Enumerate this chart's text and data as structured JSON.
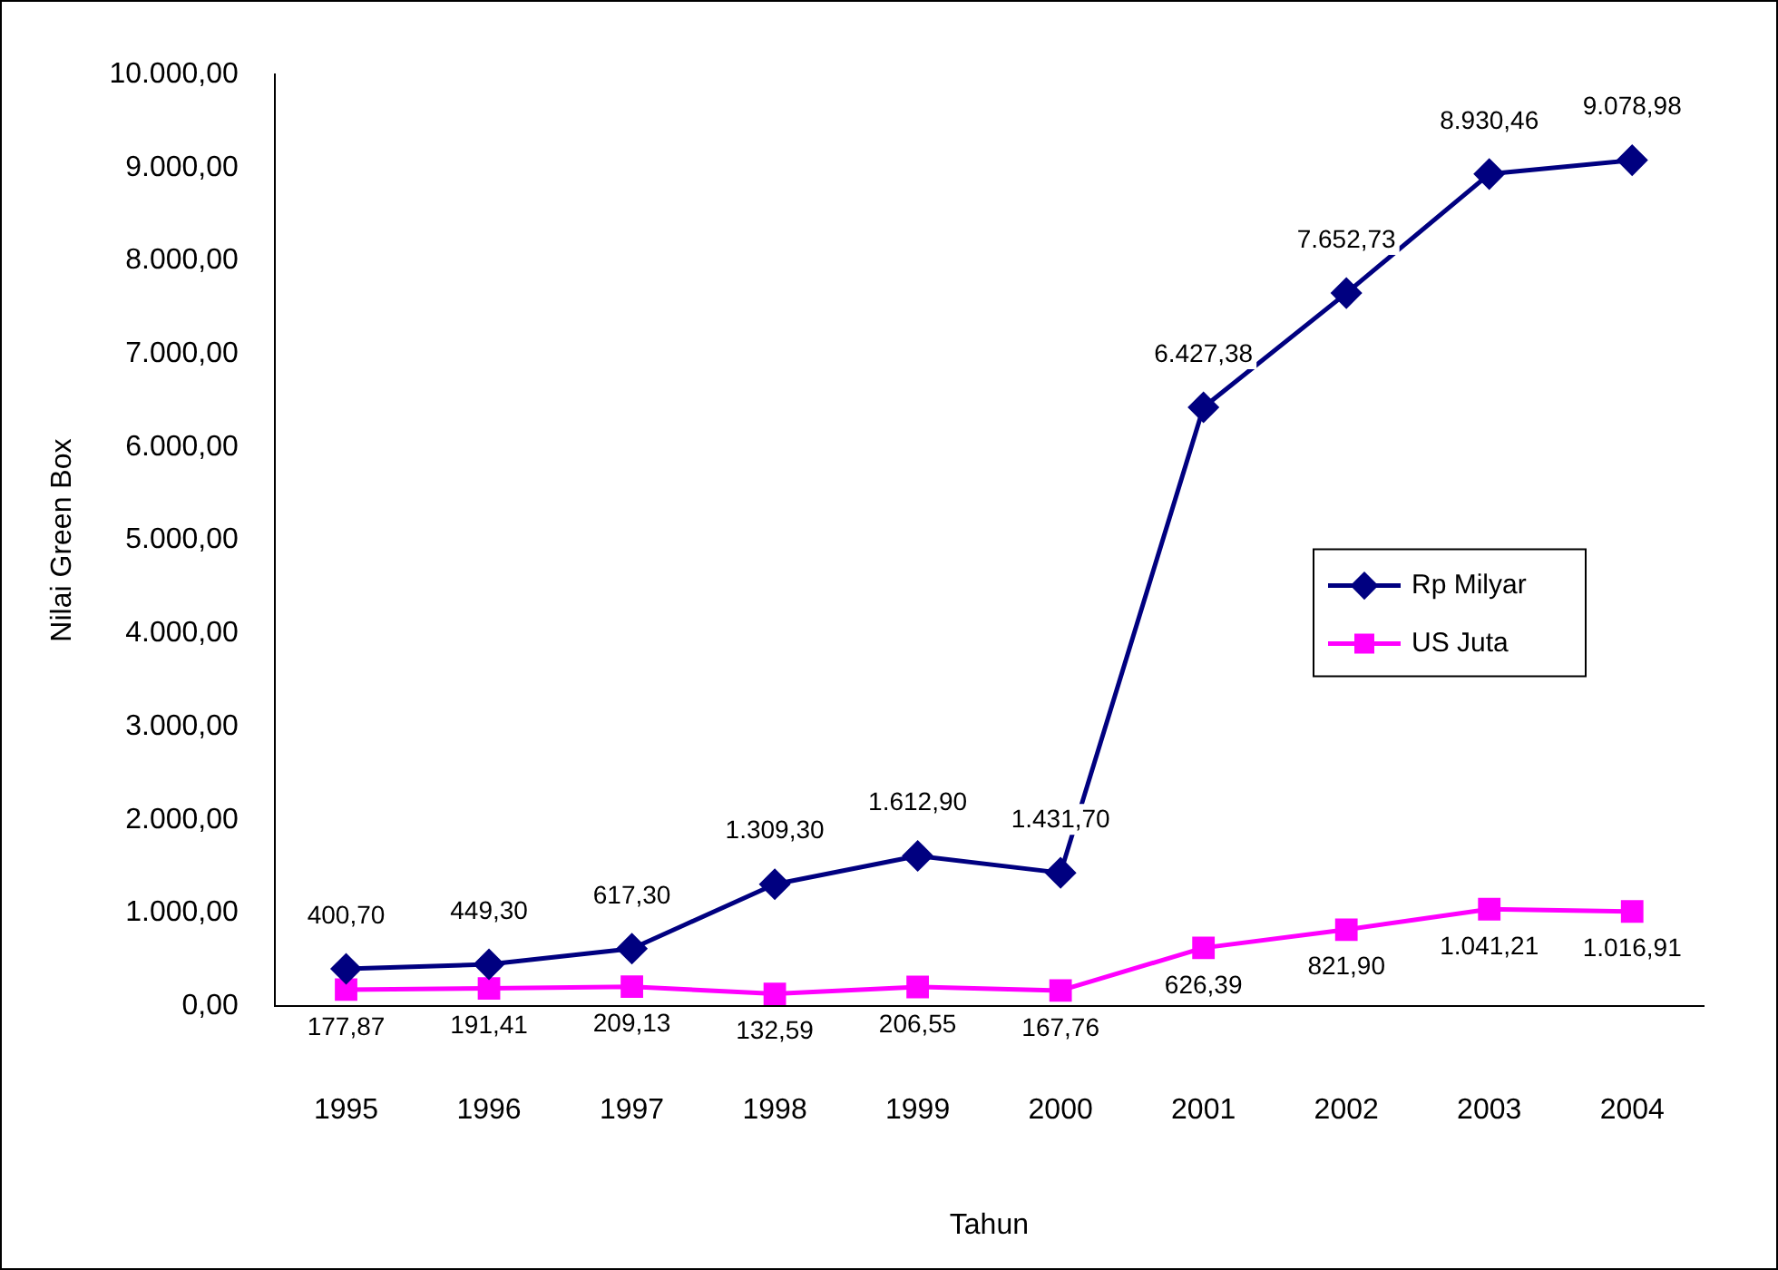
{
  "chart_data": {
    "type": "line",
    "xlabel": "Tahun",
    "ylabel": "Nilai Green Box",
    "categories": [
      "1995",
      "1996",
      "1997",
      "1998",
      "1999",
      "2000",
      "2001",
      "2002",
      "2003",
      "2004"
    ],
    "series": [
      {
        "name": "Rp Milyar",
        "color": "#000080",
        "marker": "diamond",
        "values": [
          400.7,
          449.3,
          617.3,
          1309.3,
          1612.9,
          1431.7,
          6427.38,
          7652.73,
          8930.46,
          9078.98
        ],
        "value_labels": [
          "400,70",
          "449,30",
          "617,30",
          "1.309,30",
          "1.612,90",
          "1.431,70",
          "6.427,38",
          "7.652,73",
          "8.930,46",
          "9.078,98"
        ]
      },
      {
        "name": "US Juta",
        "color": "#ff00ff",
        "marker": "square",
        "values": [
          177.87,
          191.41,
          209.13,
          132.59,
          206.55,
          167.76,
          626.39,
          821.9,
          1041.21,
          1016.91
        ],
        "value_labels": [
          "177,87",
          "191,41",
          "209,13",
          "132,59",
          "206,55",
          "167,76",
          "626,39",
          "821,90",
          "1.041,21",
          "1.016,91"
        ]
      }
    ],
    "ylim": [
      0,
      10000
    ],
    "yticks": [
      {
        "value": 0,
        "label": "0,00"
      },
      {
        "value": 1000,
        "label": "1.000,00"
      },
      {
        "value": 2000,
        "label": "2.000,00"
      },
      {
        "value": 3000,
        "label": "3.000,00"
      },
      {
        "value": 4000,
        "label": "4.000,00"
      },
      {
        "value": 5000,
        "label": "5.000,00"
      },
      {
        "value": 6000,
        "label": "6.000,00"
      },
      {
        "value": 7000,
        "label": "7.000,00"
      },
      {
        "value": 8000,
        "label": "8.000,00"
      },
      {
        "value": 9000,
        "label": "9.000,00"
      },
      {
        "value": 10000,
        "label": "10.000,00"
      }
    ],
    "grid": false,
    "legend": "right",
    "line_style": "solid"
  }
}
